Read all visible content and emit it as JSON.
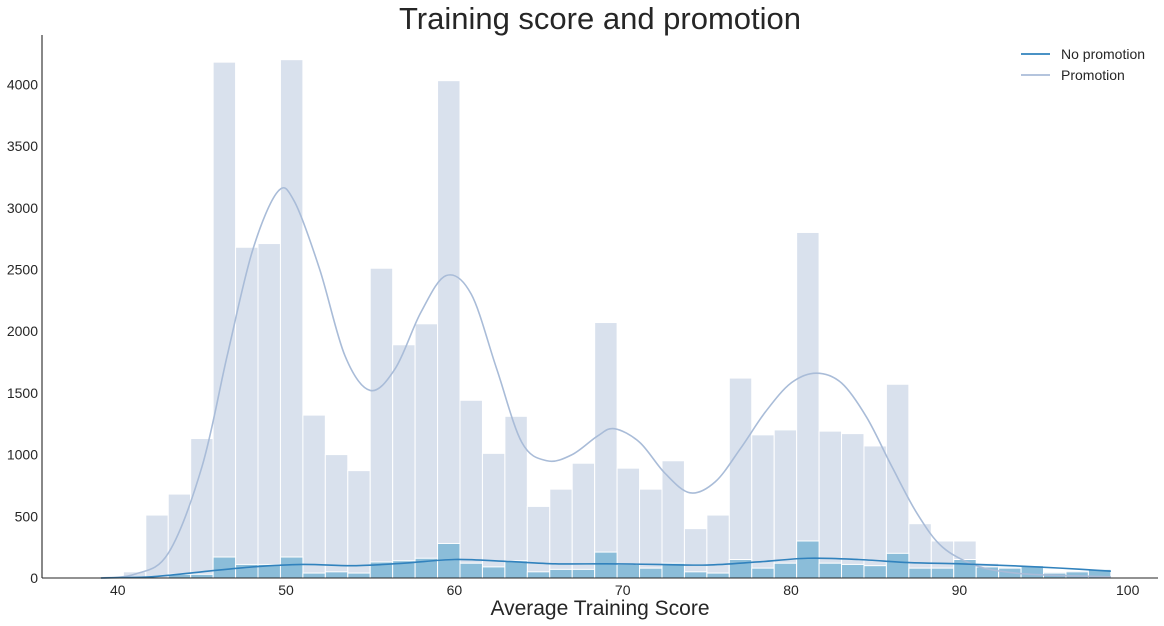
{
  "chart_data": {
    "type": "histogram",
    "title": "Training score and promotion",
    "xlabel": "Average Training Score",
    "ylabel": "",
    "xlim": [
      35.5,
      101.8
    ],
    "ylim": [
      0,
      4400
    ],
    "x_ticks": [
      40,
      50,
      60,
      70,
      80,
      90,
      100
    ],
    "y_ticks": [
      0,
      500,
      1000,
      1500,
      2000,
      2500,
      3000,
      3500,
      4000
    ],
    "bin_start": 39,
    "bin_width": 1.3333,
    "grid": false,
    "legend_position": "top-right",
    "series": [
      {
        "name": "No promotion",
        "bar_color": "#d9e1ed",
        "line_color": "#a9bcd8",
        "values": [
          0,
          50,
          510,
          680,
          1130,
          4180,
          2680,
          2710,
          4200,
          1320,
          1000,
          870,
          2510,
          1890,
          2060,
          4030,
          1440,
          1010,
          1310,
          580,
          720,
          930,
          2070,
          890,
          720,
          950,
          400,
          510,
          1620,
          1160,
          1200,
          2800,
          1190,
          1170,
          1070,
          1570,
          440,
          300,
          300,
          120,
          90,
          70,
          50,
          60,
          50
        ],
        "kde": [
          [
            39,
            0
          ],
          [
            41,
            30
          ],
          [
            43,
            200
          ],
          [
            45,
            900
          ],
          [
            46.5,
            1800
          ],
          [
            48,
            2650
          ],
          [
            49.5,
            3130
          ],
          [
            50.5,
            3050
          ],
          [
            52,
            2500
          ],
          [
            53.5,
            1800
          ],
          [
            55,
            1520
          ],
          [
            56.5,
            1700
          ],
          [
            58,
            2150
          ],
          [
            59.5,
            2450
          ],
          [
            61,
            2300
          ],
          [
            62.5,
            1700
          ],
          [
            64,
            1100
          ],
          [
            65.5,
            950
          ],
          [
            67,
            1000
          ],
          [
            68.5,
            1150
          ],
          [
            69.5,
            1210
          ],
          [
            71,
            1100
          ],
          [
            72.5,
            850
          ],
          [
            74,
            690
          ],
          [
            75.5,
            780
          ],
          [
            77,
            1050
          ],
          [
            78.5,
            1350
          ],
          [
            80,
            1580
          ],
          [
            81.5,
            1660
          ],
          [
            83,
            1580
          ],
          [
            84.5,
            1300
          ],
          [
            86,
            900
          ],
          [
            87.5,
            520
          ],
          [
            89,
            250
          ],
          [
            91,
            100
          ],
          [
            93,
            45
          ],
          [
            95,
            25
          ],
          [
            99,
            10
          ]
        ]
      },
      {
        "name": "Promotion",
        "bar_color": "#8bbdd9",
        "line_color": "#3182bd",
        "values": [
          0,
          0,
          0,
          30,
          30,
          170,
          110,
          110,
          170,
          40,
          50,
          40,
          130,
          140,
          160,
          280,
          120,
          90,
          140,
          50,
          70,
          70,
          210,
          110,
          80,
          120,
          50,
          40,
          150,
          80,
          120,
          300,
          120,
          110,
          100,
          200,
          80,
          80,
          150,
          90,
          80,
          100,
          40,
          50,
          70
        ],
        "kde": [
          [
            39,
            0
          ],
          [
            42,
            10
          ],
          [
            45,
            50
          ],
          [
            48,
            90
          ],
          [
            51,
            110
          ],
          [
            54,
            100
          ],
          [
            57,
            120
          ],
          [
            60,
            150
          ],
          [
            63,
            135
          ],
          [
            66,
            115
          ],
          [
            69,
            115
          ],
          [
            72,
            110
          ],
          [
            75,
            105
          ],
          [
            78,
            130
          ],
          [
            81,
            160
          ],
          [
            84,
            150
          ],
          [
            87,
            125
          ],
          [
            90,
            115
          ],
          [
            93,
            100
          ],
          [
            96,
            80
          ],
          [
            99,
            55
          ]
        ]
      }
    ]
  }
}
